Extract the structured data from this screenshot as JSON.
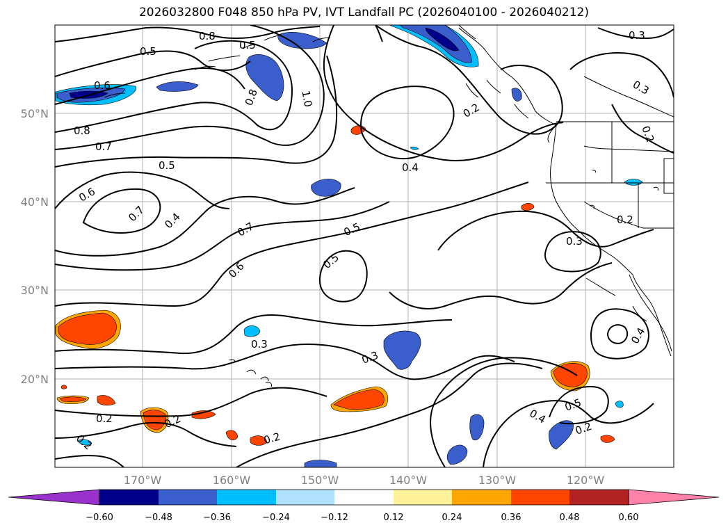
{
  "title": "2026032800 F048 850 hPa PV, IVT Landfall PC (2026040100 - 2026040212)",
  "lat_ticks": [
    "50°N",
    "40°N",
    "30°N",
    "20°N"
  ],
  "lon_ticks": [
    "170°W",
    "160°W",
    "150°W",
    "140°W",
    "130°W",
    "120°W"
  ],
  "contour_labels": [
    "0.8",
    "0.5",
    "0.5",
    "0.3",
    "0.6",
    "0.8",
    "1.0",
    "0.3",
    "0.2",
    "0.8",
    "0.7",
    "0.5",
    "0.2",
    "0.4",
    "0.6",
    "0.7",
    "0.4",
    "0.7",
    "0.5",
    "0.2",
    "0.5",
    "0.3",
    "0.6",
    "0.3",
    "0.3",
    "0.4",
    "0.2",
    "0.2",
    "0.2",
    "0.2",
    "0.4",
    "0.5",
    "0.2"
  ],
  "colorbar": {
    "labels": [
      "−0.60",
      "−0.48",
      "−0.36",
      "−0.24",
      "−0.12",
      "0.12",
      "0.24",
      "0.36",
      "0.48",
      "0.60"
    ],
    "colors": [
      "#9932cc",
      "#00008b",
      "#3a5fcd",
      "#00bfff",
      "#b0e2ff",
      "#ffffff",
      "#fff09a",
      "#ffa500",
      "#ff4500",
      "#b22222",
      "#ff82ab"
    ]
  }
}
